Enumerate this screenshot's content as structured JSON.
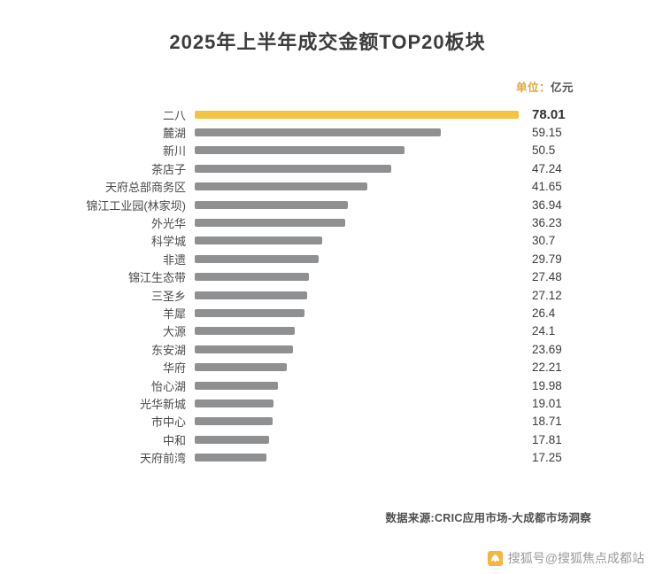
{
  "title": "2025年上半年成交金额TOP20板块",
  "unit": {
    "prefix": "单位：",
    "suffix": "亿元"
  },
  "source": "数据来源:CRIC应用市场-大成都市场洞察",
  "watermark": {
    "text": "搜狐号@搜狐焦点成都站",
    "icon": "sohu-fox-icon"
  },
  "colors": {
    "highlight_bar": "#f5c242",
    "default_bar": "#8f9092",
    "title_text": "#3c3c3c",
    "unit_accent": "#e2a73b",
    "watermark_icon": "#f5b63f"
  },
  "chart_data": {
    "type": "bar",
    "orientation": "horizontal",
    "title": "2025年上半年成交金额TOP20板块",
    "unit": "亿元",
    "xlim": [
      0,
      78.01
    ],
    "grid": false,
    "legend": "none",
    "highlight_index": 0,
    "categories": [
      "二八",
      "麓湖",
      "新川",
      "茶店子",
      "天府总部商务区",
      "锦江工业园(林家坝)",
      "外光华",
      "科学城",
      "非遗",
      "锦江生态带",
      "三圣乡",
      "羊犀",
      "大源",
      "东安湖",
      "华府",
      "怡心湖",
      "光华新城",
      "市中心",
      "中和",
      "天府前湾"
    ],
    "values": [
      78.01,
      59.15,
      50.5,
      47.24,
      41.65,
      36.94,
      36.23,
      30.7,
      29.79,
      27.48,
      27.12,
      26.4,
      24.1,
      23.69,
      22.21,
      19.98,
      19.01,
      18.71,
      17.81,
      17.25
    ]
  }
}
